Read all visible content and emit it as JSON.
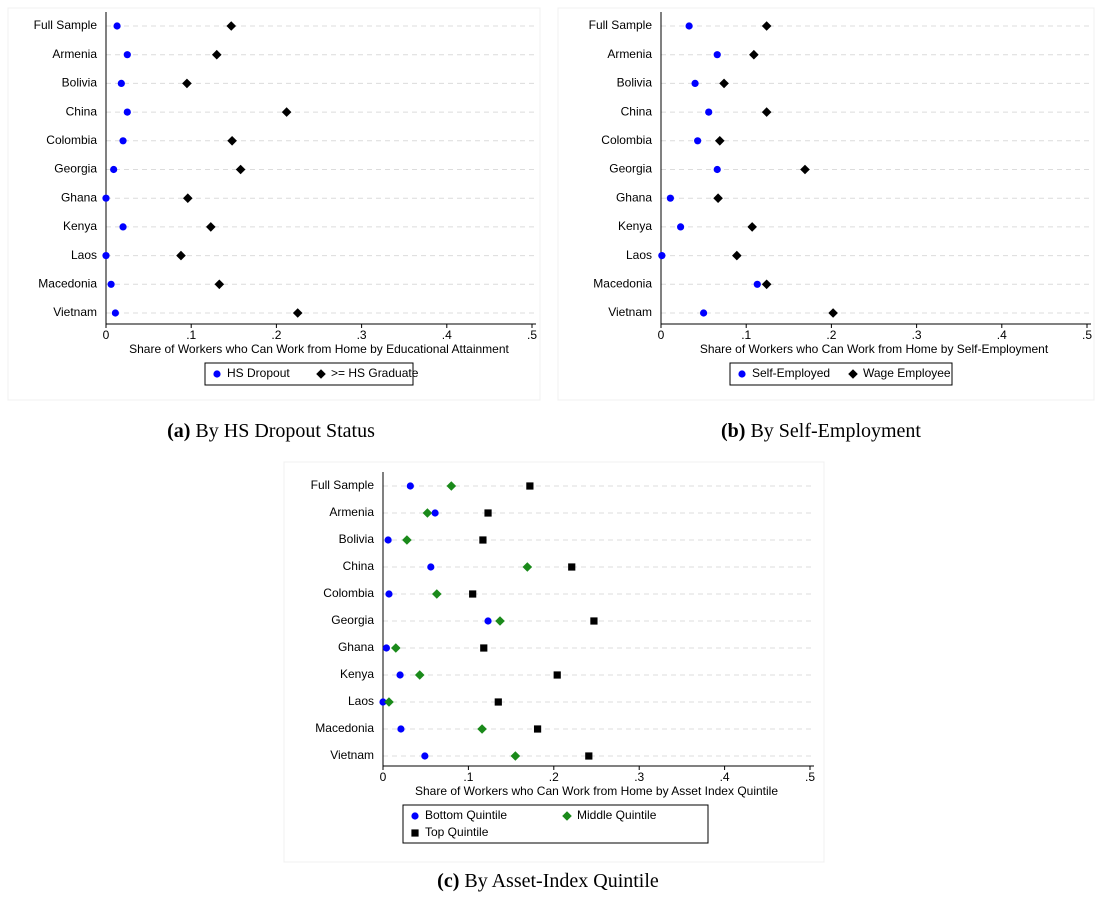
{
  "chart_data": [
    {
      "type": "dot",
      "categories": [
        "Full Sample",
        "Armenia",
        "Bolivia",
        "China",
        "Colombia",
        "Georgia",
        "Ghana",
        "Kenya",
        "Laos",
        "Macedonia",
        "Vietnam"
      ],
      "series": [
        {
          "name": "HS Dropout",
          "color": "#0000ff",
          "marker": "circle",
          "values": [
            0.013,
            0.025,
            0.018,
            0.025,
            0.02,
            0.009,
            0.0,
            0.02,
            0.0,
            0.006,
            0.011
          ]
        },
        {
          "name": ">= HS Graduate",
          "color": "#000000",
          "marker": "diamond",
          "values": [
            0.147,
            0.13,
            0.095,
            0.212,
            0.148,
            0.158,
            0.096,
            0.123,
            0.088,
            0.133,
            0.225
          ]
        }
      ],
      "x_label": "Share of Workers who Can Work from Home by Educational Attainment",
      "xlim": [
        0,
        0.5
      ],
      "xticks": [
        0,
        {
          "value": 0.1,
          "label": ".1"
        },
        {
          "value": 0.2,
          "label": ".2"
        },
        {
          "value": 0.3,
          "label": ".3"
        },
        {
          "value": 0.4,
          "label": ".4"
        },
        {
          "value": 0.5,
          "label": ".5"
        }
      ],
      "grid": true,
      "caption_label": "(a)",
      "caption": "By HS Dropout Status"
    },
    {
      "type": "dot",
      "categories": [
        "Full Sample",
        "Armenia",
        "Bolivia",
        "China",
        "Colombia",
        "Georgia",
        "Ghana",
        "Kenya",
        "Laos",
        "Macedonia",
        "Vietnam"
      ],
      "series": [
        {
          "name": "Self-Employed",
          "color": "#0000ff",
          "marker": "circle",
          "values": [
            0.033,
            0.066,
            0.04,
            0.056,
            0.043,
            0.066,
            0.011,
            0.023,
            0.001,
            0.113,
            0.05
          ]
        },
        {
          "name": "Wage Employee",
          "color": "#000000",
          "marker": "diamond",
          "values": [
            0.124,
            0.109,
            0.074,
            0.124,
            0.069,
            0.169,
            0.067,
            0.107,
            0.089,
            0.124,
            0.202
          ]
        }
      ],
      "x_label": "Share of Workers who Can Work from Home by Self-Employment",
      "xlim": [
        0,
        0.5
      ],
      "xticks": [
        0,
        {
          "value": 0.1,
          "label": ".1"
        },
        {
          "value": 0.2,
          "label": ".2"
        },
        {
          "value": 0.3,
          "label": ".3"
        },
        {
          "value": 0.4,
          "label": ".4"
        },
        {
          "value": 0.5,
          "label": ".5"
        }
      ],
      "grid": true,
      "caption_label": "(b)",
      "caption": "By Self-Employment"
    },
    {
      "type": "dot",
      "categories": [
        "Full Sample",
        "Armenia",
        "Bolivia",
        "China",
        "Colombia",
        "Georgia",
        "Ghana",
        "Kenya",
        "Laos",
        "Macedonia",
        "Vietnam"
      ],
      "series": [
        {
          "name": "Bottom Quintile",
          "color": "#0000ff",
          "marker": "circle",
          "values": [
            0.032,
            0.061,
            0.006,
            0.056,
            0.007,
            0.123,
            0.004,
            0.02,
            0.0,
            0.021,
            0.049
          ]
        },
        {
          "name": "Middle Quintile",
          "color": "#1a8a1a",
          "marker": "diamond",
          "values": [
            0.08,
            0.052,
            0.028,
            0.169,
            0.063,
            0.137,
            0.015,
            0.043,
            0.007,
            0.116,
            0.155
          ]
        },
        {
          "name": "Top Quintile",
          "color": "#000000",
          "marker": "square",
          "values": [
            0.172,
            0.123,
            0.117,
            0.221,
            0.105,
            0.247,
            0.118,
            0.204,
            0.135,
            0.181,
            0.241
          ]
        }
      ],
      "x_label": "Share of Workers who Can Work from Home by Asset Index Quintile",
      "xlim": [
        0,
        0.5
      ],
      "xticks": [
        0,
        {
          "value": 0.1,
          "label": ".1"
        },
        {
          "value": 0.2,
          "label": ".2"
        },
        {
          "value": 0.3,
          "label": ".3"
        },
        {
          "value": 0.4,
          "label": ".4"
        },
        {
          "value": 0.5,
          "label": ".5"
        }
      ],
      "grid": true,
      "caption_label": "(c)",
      "caption": "By Asset-Index Quintile"
    }
  ]
}
